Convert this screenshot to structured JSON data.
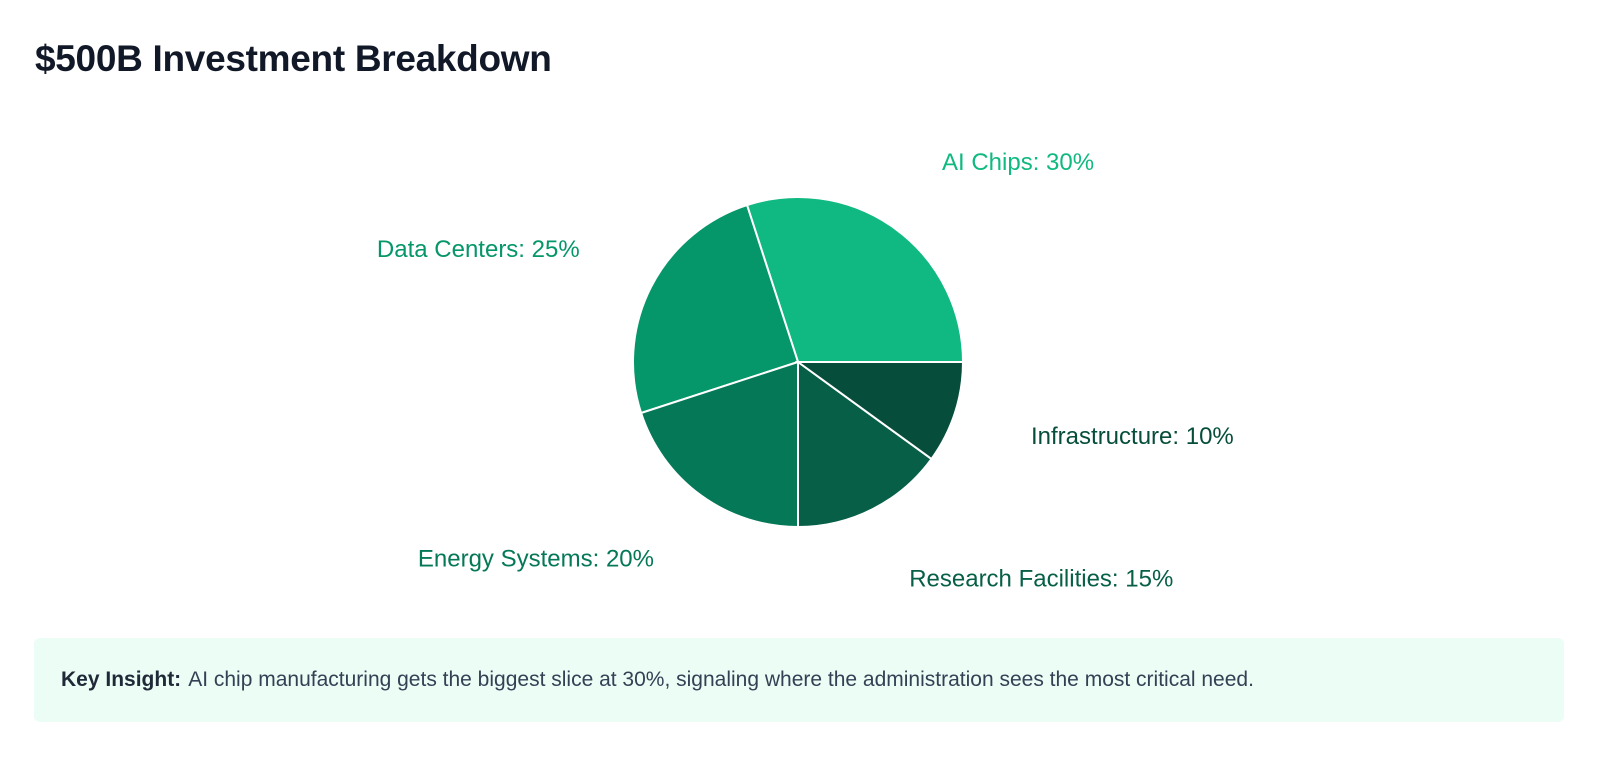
{
  "page_title": "$500B Investment Breakdown",
  "chart_data": {
    "type": "pie",
    "title": "$500B Investment Breakdown",
    "unit": "%",
    "slices": [
      {
        "name": "AI Chips",
        "value": 30,
        "label": "AI Chips: 30%",
        "color": "#10b981"
      },
      {
        "name": "Data Centers",
        "value": 25,
        "label": "Data Centers: 25%",
        "color": "#059669"
      },
      {
        "name": "Energy Systems",
        "value": 20,
        "label": "Energy Systems: 20%",
        "color": "#047857"
      },
      {
        "name": "Research Facilities",
        "value": 15,
        "label": "Research Facilities: 15%",
        "color": "#065f46"
      },
      {
        "name": "Infrastructure",
        "value": 10,
        "label": "Infrastructure: 10%",
        "color": "#064e3b"
      }
    ]
  },
  "insight": {
    "label": "Key Insight:",
    "text": "AI chip manufacturing gets the biggest slice at 30%, signaling where the administration sees the most critical need."
  }
}
